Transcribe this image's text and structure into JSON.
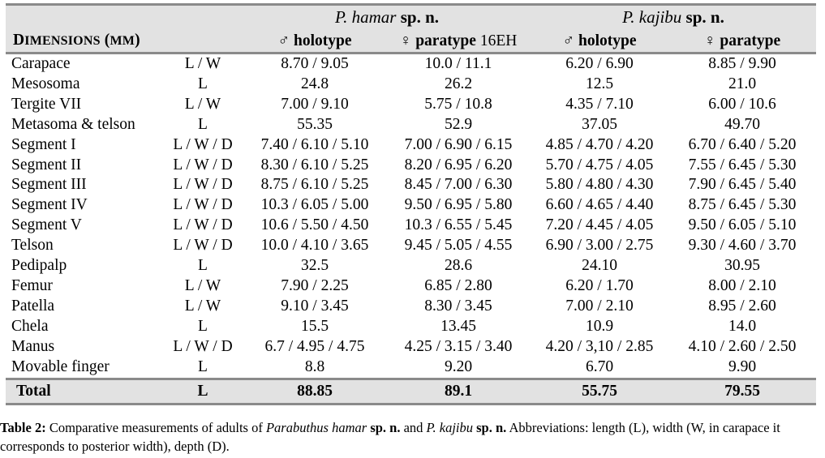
{
  "table": {
    "species_header": {
      "hamar": {
        "genus": "P. hamar",
        "suffix": " sp. n."
      },
      "kajibu": {
        "genus": "P. kajibu",
        "suffix": " sp. n."
      }
    },
    "dimensions_label": {
      "initial": "D",
      "rest": "IMENSIONS",
      "unit_open": " (",
      "unit": "MM",
      "unit_close": ")"
    },
    "columns": [
      {
        "symbol": "♂",
        "label": " holotype",
        "note": ""
      },
      {
        "symbol": "♀",
        "label": " paratype",
        "note": " 16EH"
      },
      {
        "symbol": "♂",
        "label": " holotype",
        "note": ""
      },
      {
        "symbol": "♀",
        "label": " paratype",
        "note": ""
      }
    ],
    "rows": [
      {
        "name": "Carapace",
        "abbr": "L / W",
        "values": [
          "8.70 / 9.05",
          "10.0 / 11.1",
          "6.20 / 6.90",
          "8.85 / 9.90"
        ]
      },
      {
        "name": "Mesosoma",
        "abbr": "L",
        "values": [
          "24.8",
          "26.2",
          "12.5",
          "21.0"
        ]
      },
      {
        "name": "Tergite VII",
        "abbr": "L / W",
        "values": [
          "7.00 / 9.10",
          "5.75 / 10.8",
          "4.35 / 7.10",
          "6.00 / 10.6"
        ]
      },
      {
        "name": "Metasoma & telson",
        "abbr": "L",
        "values": [
          "55.35",
          "52.9",
          "37.05",
          "49.70"
        ]
      },
      {
        "name": "Segment I",
        "abbr": "L / W / D",
        "values": [
          "7.40 / 6.10 / 5.10",
          "7.00 / 6.90 / 6.15",
          "4.85 / 4.70 / 4.20",
          "6.70 / 6.40 / 5.20"
        ]
      },
      {
        "name": "Segment II",
        "abbr": "L / W / D",
        "values": [
          "8.30 / 6.10 / 5.25",
          "8.20 / 6.95 / 6.20",
          "5.70 / 4.75 / 4.05",
          "7.55 / 6.45 / 5.30"
        ]
      },
      {
        "name": "Segment III",
        "abbr": "L / W / D",
        "values": [
          "8.75 / 6.10 / 5.25",
          "8.45 / 7.00 / 6.30",
          "5.80 / 4.80 / 4.30",
          "7.90 / 6.45 / 5.40"
        ]
      },
      {
        "name": "Segment IV",
        "abbr": "L / W / D",
        "values": [
          "10.3 / 6.05 / 5.00",
          "9.50 / 6.95 / 5.80",
          "6.60 / 4.65 / 4.40",
          "8.75 / 6.45 / 5.30"
        ]
      },
      {
        "name": "Segment V",
        "abbr": "L / W / D",
        "values": [
          "10.6 / 5.50 / 4.50",
          "10.3 / 6.55 / 5.45",
          "7.20 / 4.45 / 4.05",
          "9.50 / 6.05 / 5.10"
        ]
      },
      {
        "name": "Telson",
        "abbr": "L / W / D",
        "values": [
          "10.0 / 4.10 / 3.65",
          "9.45 / 5.05 / 4.55",
          "6.90 / 3.00 / 2.75",
          "9.30 / 4.60 / 3.70"
        ]
      },
      {
        "name": "Pedipalp",
        "abbr": "L",
        "values": [
          "32.5",
          "28.6",
          "24.10",
          "30.95"
        ]
      },
      {
        "name": "Femur",
        "abbr": "L / W",
        "values": [
          "7.90 / 2.25",
          "6.85 / 2.80",
          "6.20 / 1.70",
          "8.00 / 2.10"
        ]
      },
      {
        "name": "Patella",
        "abbr": "L / W",
        "values": [
          "9.10 / 3.45",
          "8.30 / 3.45",
          "7.00 / 2.10",
          "8.95 / 2.60"
        ]
      },
      {
        "name": "Chela",
        "abbr": "L",
        "values": [
          "15.5",
          "13.45",
          "10.9",
          "14.0"
        ]
      },
      {
        "name": "Manus",
        "abbr": "L / W / D",
        "values": [
          "6.7 / 4.95 / 4.75",
          "4.25 / 3.15 / 3.40",
          "4.20 / 3,10 / 2.85",
          "4.10 / 2.60 / 2.50"
        ]
      },
      {
        "name": "Movable finger",
        "abbr": "L",
        "values": [
          "8.8",
          "9.20",
          "6.70",
          "9.90"
        ]
      }
    ],
    "total": {
      "name": "Total",
      "abbr": "L",
      "values": [
        "88.85",
        "89.1",
        "55.75",
        "79.55"
      ]
    }
  },
  "caption": {
    "label": "Table 2:",
    "t1": " Comparative measurements of adults of ",
    "species1": "Parabuthus hamar",
    "spn1": " sp. n.",
    "t2": " and ",
    "species2": "P. kajibu",
    "spn2": " sp. n.",
    "t3": " Abbreviations: length (L), width (W, in carapace it corresponds to posterior width), depth (D)."
  }
}
